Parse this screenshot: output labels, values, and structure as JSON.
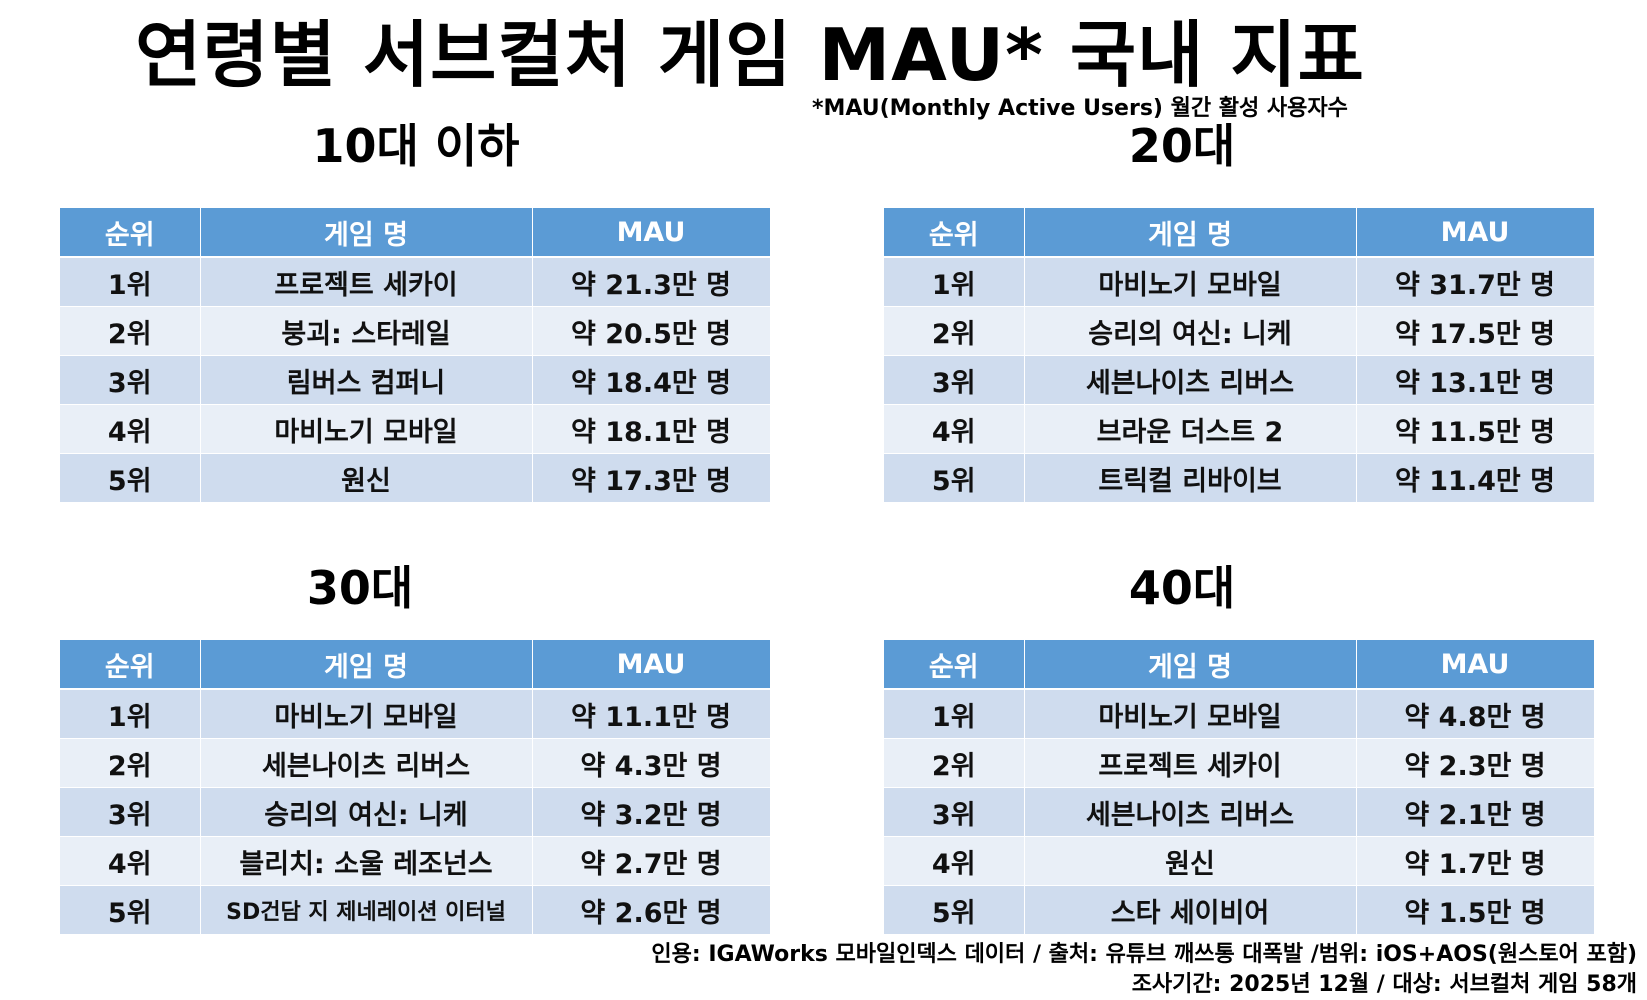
{
  "title": "연령별 서브컬처 게임 MAU* 국내 지표",
  "note": "*MAU(Monthly Active Users) 월간 활성 사용자수",
  "columns": {
    "rank": "순위",
    "game": "게임 명",
    "mau": "MAU"
  },
  "sections": [
    {
      "title": "10대 이하",
      "rows": [
        {
          "rank": "1위",
          "game": "프로젝트 세카이",
          "mau": "약 21.3만 명"
        },
        {
          "rank": "2위",
          "game": "붕괴: 스타레일",
          "mau": "약 20.5만 명"
        },
        {
          "rank": "3위",
          "game": "림버스 컴퍼니",
          "mau": "약 18.4만 명"
        },
        {
          "rank": "4위",
          "game": "마비노기 모바일",
          "mau": "약 18.1만 명"
        },
        {
          "rank": "5위",
          "game": "원신",
          "mau": "약 17.3만 명"
        }
      ]
    },
    {
      "title": "20대",
      "rows": [
        {
          "rank": "1위",
          "game": "마비노기 모바일",
          "mau": "약 31.7만 명"
        },
        {
          "rank": "2위",
          "game": "승리의 여신: 니케",
          "mau": "약 17.5만 명"
        },
        {
          "rank": "3위",
          "game": "세븐나이츠 리버스",
          "mau": "약 13.1만 명"
        },
        {
          "rank": "4위",
          "game": "브라운 더스트 2",
          "mau": "약 11.5만 명"
        },
        {
          "rank": "5위",
          "game": "트릭컬 리바이브",
          "mau": "약 11.4만 명"
        }
      ]
    },
    {
      "title": "30대",
      "rows": [
        {
          "rank": "1위",
          "game": "마비노기 모바일",
          "mau": "약 11.1만 명"
        },
        {
          "rank": "2위",
          "game": "세븐나이츠 리버스",
          "mau": "약 4.3만 명"
        },
        {
          "rank": "3위",
          "game": "승리의 여신: 니케",
          "mau": "약 3.2만 명"
        },
        {
          "rank": "4위",
          "game": "블리치: 소울 레조넌스",
          "mau": "약 2.7만 명"
        },
        {
          "rank": "5위",
          "game": "SD건담 지 제네레이션 이터널",
          "mau": "약 2.6만 명"
        }
      ]
    },
    {
      "title": "40대",
      "rows": [
        {
          "rank": "1위",
          "game": "마비노기 모바일",
          "mau": "약 4.8만 명"
        },
        {
          "rank": "2위",
          "game": "프로젝트 세카이",
          "mau": "약 2.3만 명"
        },
        {
          "rank": "3위",
          "game": "세븐나이츠 리버스",
          "mau": "약 2.1만 명"
        },
        {
          "rank": "4위",
          "game": "원신",
          "mau": "약 1.7만 명"
        },
        {
          "rank": "5위",
          "game": "스타 세이비어",
          "mau": "약 1.5만 명"
        }
      ]
    }
  ],
  "footer": {
    "line1": "인용: IGAWorks 모바일인덱스 데이터 / 출처: 유튜브 깨쓰통 대폭발 /범위: iOS+AOS(원스토어 포함)",
    "line2": "조사기간: 2025년 12월 / 대상: 서브컬처 게임 58개"
  }
}
